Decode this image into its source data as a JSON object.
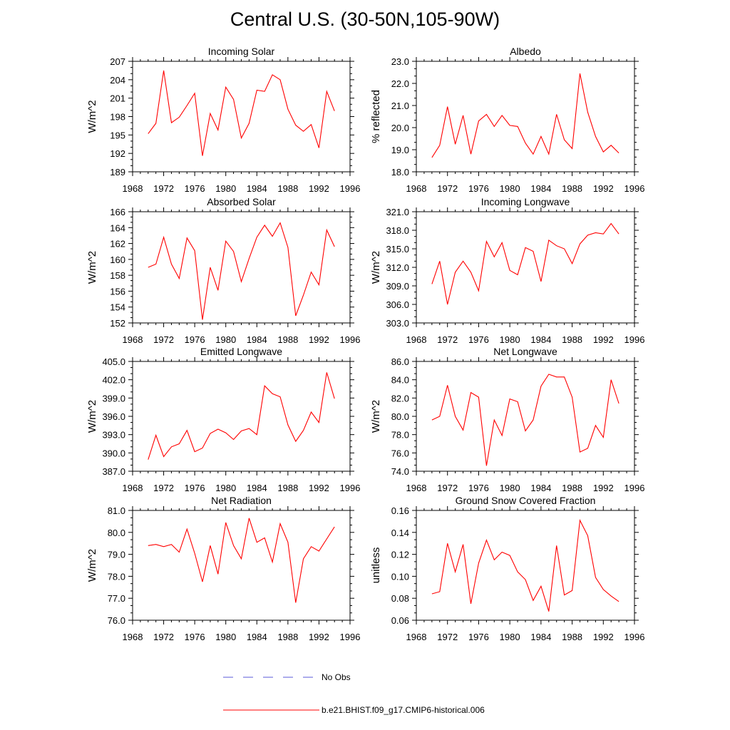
{
  "figure_title": "Central U.S. (30-50N,105-90W)",
  "legend": [
    {
      "label": "No Obs",
      "color": "#5a5ad8",
      "style": "dashed"
    },
    {
      "label": "b.e21.BHIST.f09_g17.CMIP6-historical.006",
      "color": "#ff0000",
      "style": "solid"
    }
  ],
  "chart_data": [
    {
      "type": "line",
      "title": "Incoming Solar",
      "ylabel": "W/m^2",
      "xlim": [
        1968,
        1996
      ],
      "xticks": [
        "1968",
        "1972",
        "1976",
        "1980",
        "1984",
        "1988",
        "1992",
        "1996"
      ],
      "ylim": [
        189,
        207
      ],
      "yticks": [
        "189",
        "192",
        "195",
        "198",
        "201",
        "204",
        "207"
      ],
      "x": [
        1970,
        1971,
        1972,
        1973,
        1974,
        1975,
        1976,
        1977,
        1978,
        1979,
        1980,
        1981,
        1982,
        1983,
        1984,
        1985,
        1986,
        1987,
        1988,
        1989,
        1990,
        1991,
        1992,
        1993,
        1994
      ],
      "series": [
        {
          "name": "b.e21.BHIST.f09_g17.CMIP6-historical.006",
          "color": "#ff0000",
          "values": [
            195.2,
            196.9,
            205.5,
            197.0,
            197.9,
            199.8,
            201.8,
            191.6,
            198.5,
            195.8,
            202.8,
            200.8,
            194.5,
            196.9,
            202.3,
            202.1,
            204.8,
            204.0,
            199.2,
            196.6,
            195.6,
            196.7,
            192.9,
            202.1,
            198.9
          ]
        }
      ]
    },
    {
      "type": "line",
      "title": "Albedo",
      "ylabel": "% reflected",
      "xlim": [
        1968,
        1996
      ],
      "xticks": [
        "1968",
        "1972",
        "1976",
        "1980",
        "1984",
        "1988",
        "1992",
        "1996"
      ],
      "ylim": [
        18.0,
        23.0
      ],
      "yticks": [
        "18.0",
        "19.0",
        "20.0",
        "21.0",
        "22.0",
        "23.0"
      ],
      "x": [
        1970,
        1971,
        1972,
        1973,
        1974,
        1975,
        1976,
        1977,
        1978,
        1979,
        1980,
        1981,
        1982,
        1983,
        1984,
        1985,
        1986,
        1987,
        1988,
        1989,
        1990,
        1991,
        1992,
        1993,
        1994
      ],
      "series": [
        {
          "name": "b.e21.BHIST.f09_g17.CMIP6-historical.006",
          "color": "#ff0000",
          "values": [
            18.65,
            19.2,
            20.95,
            19.25,
            20.55,
            18.8,
            20.3,
            20.6,
            20.05,
            20.55,
            20.1,
            20.05,
            19.3,
            18.8,
            19.6,
            18.8,
            20.6,
            19.45,
            19.05,
            22.45,
            20.7,
            19.6,
            18.9,
            19.2,
            18.85
          ]
        }
      ]
    },
    {
      "type": "line",
      "title": "Absorbed Solar",
      "ylabel": "W/m^2",
      "xlim": [
        1968,
        1996
      ],
      "xticks": [
        "1968",
        "1972",
        "1976",
        "1980",
        "1984",
        "1988",
        "1992",
        "1996"
      ],
      "ylim": [
        152,
        166
      ],
      "yticks": [
        "152",
        "154",
        "156",
        "158",
        "160",
        "162",
        "164",
        "166"
      ],
      "x": [
        1970,
        1971,
        1972,
        1973,
        1974,
        1975,
        1976,
        1977,
        1978,
        1979,
        1980,
        1981,
        1982,
        1983,
        1984,
        1985,
        1986,
        1987,
        1988,
        1989,
        1990,
        1991,
        1992,
        1993,
        1994
      ],
      "series": [
        {
          "name": "b.e21.BHIST.f09_g17.CMIP6-historical.006",
          "color": "#ff0000",
          "values": [
            159.0,
            159.4,
            162.8,
            159.4,
            157.6,
            162.7,
            161.1,
            152.4,
            159.0,
            156.1,
            162.3,
            161.0,
            157.2,
            160.1,
            162.8,
            164.3,
            162.9,
            164.6,
            161.5,
            152.9,
            155.5,
            158.4,
            156.8,
            163.7,
            161.6
          ]
        }
      ]
    },
    {
      "type": "line",
      "title": "Incoming Longwave",
      "ylabel": "W/m^2",
      "xlim": [
        1968,
        1996
      ],
      "xticks": [
        "1968",
        "1972",
        "1976",
        "1980",
        "1984",
        "1988",
        "1992",
        "1996"
      ],
      "ylim": [
        303.0,
        321.0
      ],
      "yticks": [
        "303.0",
        "306.0",
        "309.0",
        "312.0",
        "315.0",
        "318.0",
        "321.0"
      ],
      "x": [
        1970,
        1971,
        1972,
        1973,
        1974,
        1975,
        1976,
        1977,
        1978,
        1979,
        1980,
        1981,
        1982,
        1983,
        1984,
        1985,
        1986,
        1987,
        1988,
        1989,
        1990,
        1991,
        1992,
        1993,
        1994
      ],
      "series": [
        {
          "name": "b.e21.BHIST.f09_g17.CMIP6-historical.006",
          "color": "#ff0000",
          "values": [
            309.3,
            313.0,
            306.0,
            311.2,
            313.0,
            311.2,
            308.2,
            316.2,
            313.7,
            316.0,
            311.5,
            310.8,
            315.2,
            314.6,
            309.7,
            316.4,
            315.5,
            315.0,
            312.6,
            315.8,
            317.2,
            317.6,
            317.4,
            319.1,
            317.4
          ]
        }
      ]
    },
    {
      "type": "line",
      "title": "Emitted Longwave",
      "ylabel": "W/m^2",
      "xlim": [
        1968,
        1996
      ],
      "xticks": [
        "1968",
        "1972",
        "1976",
        "1980",
        "1984",
        "1988",
        "1992",
        "1996"
      ],
      "ylim": [
        387.0,
        405.0
      ],
      "yticks": [
        "387.0",
        "390.0",
        "393.0",
        "396.0",
        "399.0",
        "402.0",
        "405.0"
      ],
      "x": [
        1970,
        1971,
        1972,
        1973,
        1974,
        1975,
        1976,
        1977,
        1978,
        1979,
        1980,
        1981,
        1982,
        1983,
        1984,
        1985,
        1986,
        1987,
        1988,
        1989,
        1990,
        1991,
        1992,
        1993,
        1994
      ],
      "series": [
        {
          "name": "b.e21.BHIST.f09_g17.CMIP6-historical.006",
          "color": "#ff0000",
          "values": [
            388.9,
            392.9,
            389.4,
            391.0,
            391.5,
            393.7,
            390.2,
            390.8,
            393.2,
            393.9,
            393.3,
            392.2,
            393.6,
            394.0,
            393.0,
            401.0,
            399.7,
            399.2,
            394.6,
            391.9,
            393.7,
            396.7,
            395.0,
            403.2,
            398.9
          ]
        }
      ]
    },
    {
      "type": "line",
      "title": "Net Longwave",
      "ylabel": "W/m^2",
      "xlim": [
        1968,
        1996
      ],
      "xticks": [
        "1968",
        "1972",
        "1976",
        "1980",
        "1984",
        "1988",
        "1992",
        "1996"
      ],
      "ylim": [
        74.0,
        86.0
      ],
      "yticks": [
        "74.0",
        "76.0",
        "78.0",
        "80.0",
        "82.0",
        "84.0",
        "86.0"
      ],
      "x": [
        1970,
        1971,
        1972,
        1973,
        1974,
        1975,
        1976,
        1977,
        1978,
        1979,
        1980,
        1981,
        1982,
        1983,
        1984,
        1985,
        1986,
        1987,
        1988,
        1989,
        1990,
        1991,
        1992,
        1993,
        1994
      ],
      "series": [
        {
          "name": "b.e21.BHIST.f09_g17.CMIP6-historical.006",
          "color": "#ff0000",
          "values": [
            79.6,
            80.0,
            83.4,
            80.0,
            78.5,
            82.6,
            82.1,
            74.6,
            79.6,
            77.9,
            81.9,
            81.6,
            78.4,
            79.6,
            83.3,
            84.6,
            84.3,
            84.3,
            82.1,
            76.1,
            76.5,
            79.0,
            77.7,
            84.0,
            81.4
          ]
        }
      ]
    },
    {
      "type": "line",
      "title": "Net Radiation",
      "ylabel": "W/m^2",
      "xlim": [
        1968,
        1996
      ],
      "xticks": [
        "1968",
        "1972",
        "1976",
        "1980",
        "1984",
        "1988",
        "1992",
        "1996"
      ],
      "ylim": [
        76.0,
        81.0
      ],
      "yticks": [
        "76.0",
        "77.0",
        "78.0",
        "79.0",
        "80.0",
        "81.0"
      ],
      "x": [
        1970,
        1971,
        1972,
        1973,
        1974,
        1975,
        1976,
        1977,
        1978,
        1979,
        1980,
        1981,
        1982,
        1983,
        1984,
        1985,
        1986,
        1987,
        1988,
        1989,
        1990,
        1991,
        1992,
        1993,
        1994
      ],
      "series": [
        {
          "name": "b.e21.BHIST.f09_g17.CMIP6-historical.006",
          "color": "#ff0000",
          "values": [
            79.4,
            79.45,
            79.35,
            79.45,
            79.1,
            80.15,
            79.05,
            77.75,
            79.4,
            78.1,
            80.45,
            79.4,
            78.8,
            80.65,
            79.55,
            79.75,
            78.65,
            80.4,
            79.55,
            76.8,
            78.8,
            79.35,
            79.15,
            79.7,
            80.25
          ]
        }
      ]
    },
    {
      "type": "line",
      "title": "Ground Snow Covered Fraction",
      "ylabel": "unitless",
      "xlim": [
        1968,
        1996
      ],
      "xticks": [
        "1968",
        "1972",
        "1976",
        "1980",
        "1984",
        "1988",
        "1992",
        "1996"
      ],
      "ylim": [
        0.06,
        0.16
      ],
      "yticks": [
        "0.06",
        "0.08",
        "0.10",
        "0.12",
        "0.14",
        "0.16"
      ],
      "x": [
        1970,
        1971,
        1972,
        1973,
        1974,
        1975,
        1976,
        1977,
        1978,
        1979,
        1980,
        1981,
        1982,
        1983,
        1984,
        1985,
        1986,
        1987,
        1988,
        1989,
        1990,
        1991,
        1992,
        1993,
        1994
      ],
      "series": [
        {
          "name": "b.e21.BHIST.f09_g17.CMIP6-historical.006",
          "color": "#ff0000",
          "values": [
            0.084,
            0.086,
            0.13,
            0.104,
            0.129,
            0.075,
            0.112,
            0.133,
            0.115,
            0.122,
            0.119,
            0.104,
            0.097,
            0.078,
            0.091,
            0.068,
            0.128,
            0.083,
            0.087,
            0.151,
            0.137,
            0.099,
            0.088,
            0.082,
            0.077
          ]
        }
      ]
    }
  ]
}
